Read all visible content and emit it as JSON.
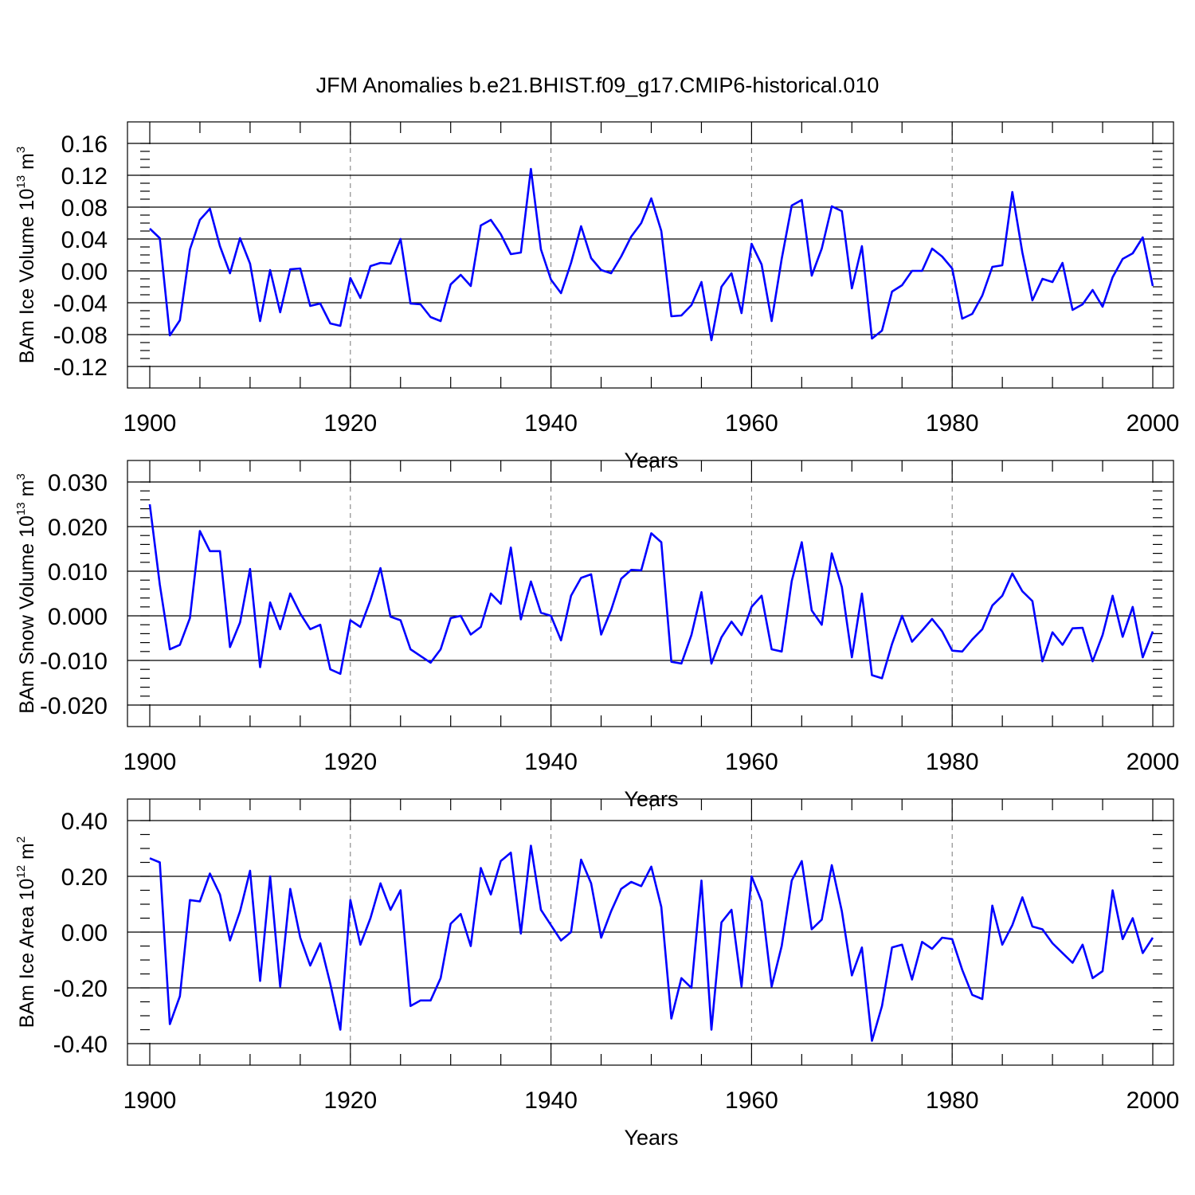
{
  "title": "JFM Anomalies b.e21.BHIST.f09_g17.CMIP6-historical.010",
  "chart_data": [
    {
      "type": "line",
      "title": "JFM Anomalies b.e21.BHIST.f09_g17.CMIP6-historical.010",
      "xlabel": "Years",
      "ylabel": "BAm Ice Volume 10",
      "ylabel_exp": "13",
      "ylabel_unit": "m",
      "ylabel_unit_exp": "3",
      "xlim": [
        1900,
        2000
      ],
      "ylim": [
        -0.12,
        0.16
      ],
      "x_ticks": [
        "1900",
        "1920",
        "1940",
        "1960",
        "1980",
        "2000"
      ],
      "y_tick_values": [
        -0.12,
        -0.08,
        -0.04,
        0.0,
        0.04,
        0.08,
        0.12,
        0.16
      ],
      "y_tick_labels": [
        "-0.12",
        "-0.08",
        "-0.04",
        "0.00",
        "0.04",
        "0.08",
        "0.12",
        "0.16"
      ],
      "y_minor_step": 0.01,
      "gridlines_x": [
        1920,
        1940,
        1960,
        1980
      ],
      "color": "#0000ff",
      "x_start": 1900,
      "values": [
        0.053,
        0.041,
        -0.081,
        -0.062,
        0.027,
        0.064,
        0.078,
        0.031,
        -0.003,
        0.041,
        0.009,
        -0.063,
        0.001,
        -0.052,
        0.002,
        0.003,
        -0.044,
        -0.041,
        -0.066,
        -0.069,
        -0.009,
        -0.034,
        0.006,
        0.01,
        0.009,
        0.04,
        -0.041,
        -0.042,
        -0.058,
        -0.063,
        -0.017,
        -0.005,
        -0.019,
        0.057,
        0.064,
        0.046,
        0.021,
        0.023,
        0.128,
        0.027,
        -0.011,
        -0.028,
        0.01,
        0.056,
        0.016,
        0.001,
        -0.003,
        0.018,
        0.043,
        0.06,
        0.091,
        0.05,
        -0.057,
        -0.056,
        -0.043,
        -0.014,
        -0.087,
        -0.02,
        -0.003,
        -0.053,
        0.034,
        0.008,
        -0.063,
        0.015,
        0.082,
        0.089,
        -0.006,
        0.028,
        0.081,
        0.075,
        -0.022,
        0.031,
        -0.085,
        -0.075,
        -0.026,
        -0.018,
        0.0,
        0.0,
        0.028,
        0.018,
        0.003,
        -0.06,
        -0.054,
        -0.031,
        0.005,
        0.007,
        0.099,
        0.023,
        -0.037,
        -0.01,
        -0.014,
        0.01,
        -0.049,
        -0.042,
        -0.024,
        -0.045,
        -0.008,
        0.015,
        0.022,
        0.042,
        -0.019
      ]
    },
    {
      "type": "line",
      "title": "",
      "xlabel": "Years",
      "ylabel": "BAm Snow Volume 10",
      "ylabel_exp": "13",
      "ylabel_unit": "m",
      "ylabel_unit_exp": "3",
      "xlim": [
        1900,
        2000
      ],
      "ylim": [
        -0.02,
        0.03
      ],
      "x_ticks": [
        "1900",
        "1920",
        "1940",
        "1960",
        "1980",
        "2000"
      ],
      "y_tick_values": [
        -0.02,
        -0.01,
        0.0,
        0.01,
        0.02,
        0.03
      ],
      "y_tick_labels": [
        "-0.020",
        "-0.010",
        "0.000",
        "0.010",
        "0.020",
        "0.030"
      ],
      "y_minor_step": 0.002,
      "gridlines_x": [
        1920,
        1940,
        1960,
        1980
      ],
      "color": "#0000ff",
      "x_start": 1900,
      "values": [
        0.025,
        0.007,
        -0.0075,
        -0.0065,
        -0.0005,
        0.019,
        0.0145,
        0.0145,
        -0.007,
        -0.0015,
        0.0105,
        -0.0115,
        0.003,
        -0.003,
        0.005,
        0.0005,
        -0.003,
        -0.002,
        -0.012,
        -0.013,
        -0.001,
        -0.0025,
        0.0035,
        0.0107,
        -0.0002,
        -0.001,
        -0.0075,
        -0.009,
        -0.0105,
        -0.0075,
        -0.0005,
        0.0,
        -0.0042,
        -0.0025,
        0.005,
        0.0027,
        0.0153,
        -0.0008,
        0.0077,
        0.0007,
        0.0,
        -0.0055,
        0.0045,
        0.0085,
        0.0093,
        -0.0042,
        0.0013,
        0.0083,
        0.0103,
        0.0102,
        0.0185,
        0.0165,
        -0.0103,
        -0.0107,
        -0.0043,
        0.0053,
        -0.0107,
        -0.0048,
        -0.0013,
        -0.0043,
        0.002,
        0.0045,
        -0.0075,
        -0.008,
        0.0078,
        0.0165,
        0.0012,
        -0.002,
        0.014,
        0.0065,
        -0.0093,
        0.005,
        -0.0133,
        -0.014,
        -0.0063,
        0.0,
        -0.0058,
        -0.0033,
        -0.0007,
        -0.0035,
        -0.0078,
        -0.008,
        -0.0053,
        -0.003,
        0.0023,
        0.0045,
        0.0095,
        0.0055,
        0.0033,
        -0.0102,
        -0.0037,
        -0.0065,
        -0.0028,
        -0.0027,
        -0.0102,
        -0.0043,
        0.0045,
        -0.0047,
        0.002,
        -0.0093,
        -0.0035
      ]
    },
    {
      "type": "line",
      "title": "",
      "xlabel": "Years",
      "ylabel": "BAm Ice Area 10",
      "ylabel_exp": "12",
      "ylabel_unit": "m",
      "ylabel_unit_exp": "2",
      "xlim": [
        1900,
        2000
      ],
      "ylim": [
        -0.4,
        0.4
      ],
      "x_ticks": [
        "1900",
        "1920",
        "1940",
        "1960",
        "1980",
        "2000"
      ],
      "y_tick_values": [
        -0.4,
        -0.2,
        0.0,
        0.2,
        0.4
      ],
      "y_tick_labels": [
        "-0.40",
        "-0.20",
        "0.00",
        "0.20",
        "0.40"
      ],
      "y_minor_step": 0.05,
      "gridlines_x": [
        1920,
        1940,
        1960,
        1980
      ],
      "color": "#0000ff",
      "x_start": 1900,
      "values": [
        0.265,
        0.25,
        -0.33,
        -0.23,
        0.115,
        0.11,
        0.21,
        0.135,
        -0.03,
        0.075,
        0.22,
        -0.175,
        0.2,
        -0.195,
        0.155,
        -0.02,
        -0.12,
        -0.04,
        -0.185,
        -0.35,
        0.115,
        -0.045,
        0.05,
        0.175,
        0.08,
        0.15,
        -0.265,
        -0.245,
        -0.245,
        -0.165,
        0.03,
        0.065,
        -0.05,
        0.23,
        0.135,
        0.255,
        0.285,
        -0.005,
        0.31,
        0.08,
        0.025,
        -0.03,
        0.0,
        0.26,
        0.175,
        -0.02,
        0.075,
        0.155,
        0.18,
        0.165,
        0.235,
        0.09,
        -0.31,
        -0.165,
        -0.2,
        0.185,
        -0.35,
        0.035,
        0.08,
        -0.195,
        0.2,
        0.11,
        -0.195,
        -0.05,
        0.185,
        0.255,
        0.01,
        0.045,
        0.24,
        0.075,
        -0.155,
        -0.055,
        -0.39,
        -0.265,
        -0.055,
        -0.045,
        -0.17,
        -0.035,
        -0.06,
        -0.02,
        -0.025,
        -0.135,
        -0.225,
        -0.24,
        0.095,
        -0.045,
        0.025,
        0.125,
        0.02,
        0.01,
        -0.04,
        -0.075,
        -0.11,
        -0.045,
        -0.165,
        -0.14,
        0.15,
        -0.025,
        0.05,
        -0.075,
        -0.02
      ]
    }
  ]
}
